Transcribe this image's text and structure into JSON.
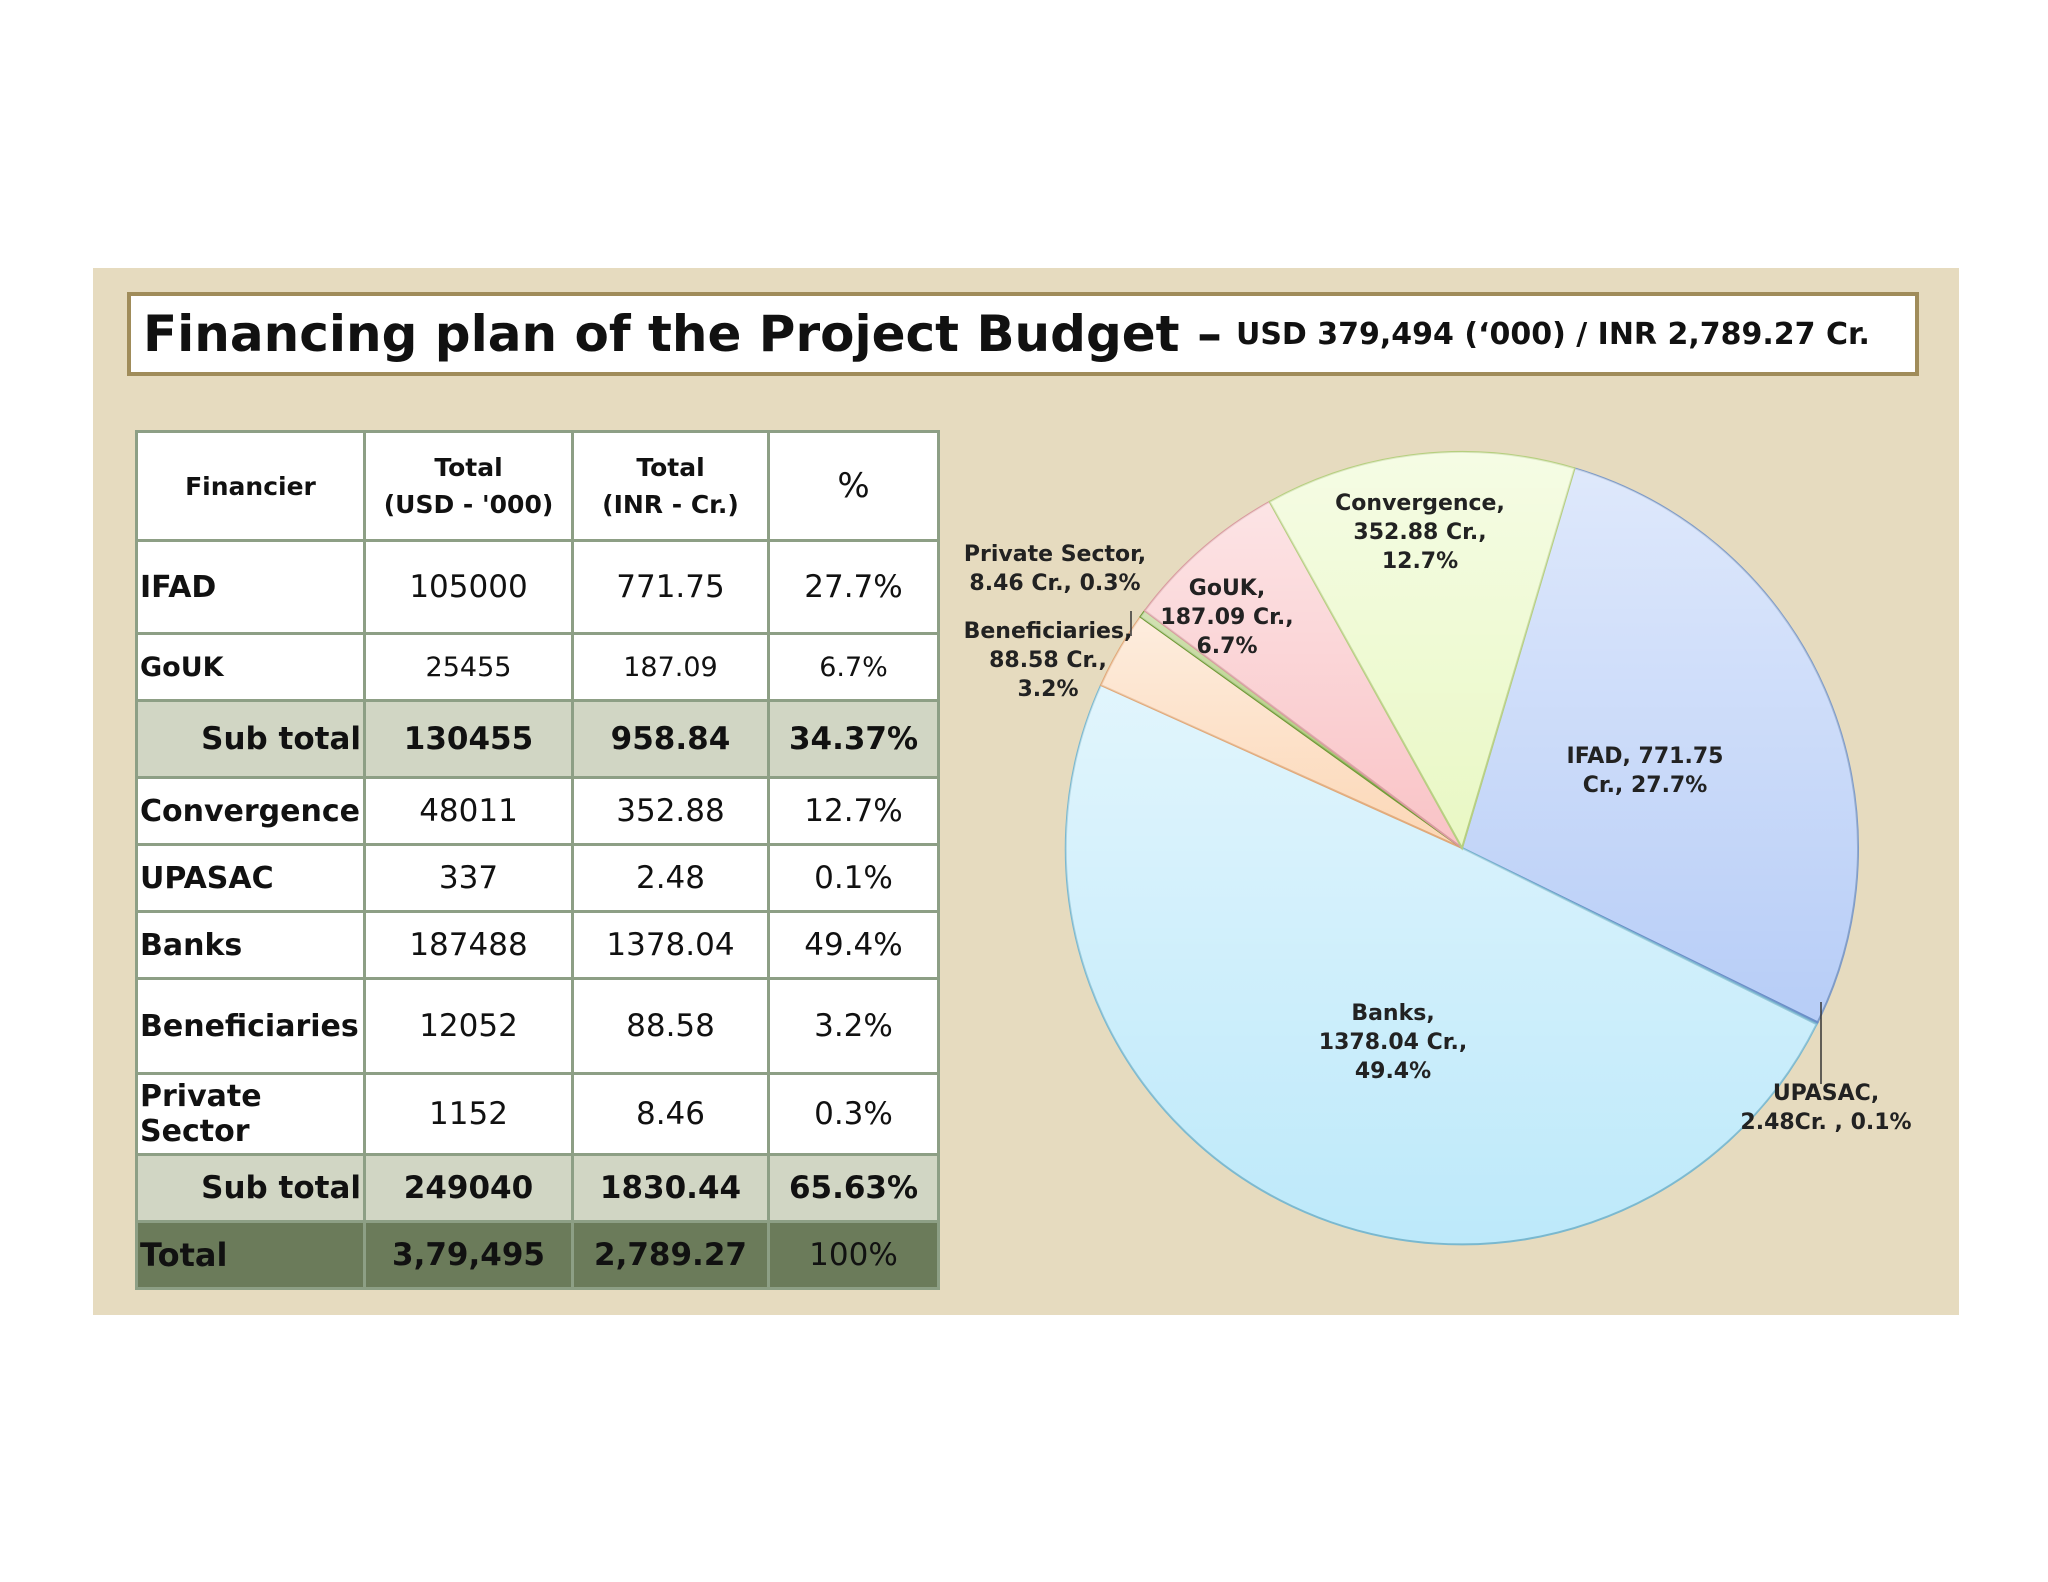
{
  "title": {
    "main": "Financing plan of the Project Budget –",
    "sub": "USD 379,494 (‘000) / INR 2,789.27 Cr."
  },
  "table": {
    "headers": [
      "Financier",
      "Total\n(USD - '000)",
      "Total\n(INR - Cr.)",
      "%"
    ],
    "rows": [
      {
        "name": "IFAD",
        "usd": "105000",
        "inr": "771.75",
        "pct": "27.7%"
      },
      {
        "name": "GoUK",
        "usd": "25455",
        "inr": "187.09",
        "pct": "6.7%"
      },
      {
        "name": "Sub total",
        "usd": "130455",
        "inr": "958.84",
        "pct": "34.37%"
      },
      {
        "name": "Convergence",
        "usd": "48011",
        "inr": "352.88",
        "pct": "12.7%"
      },
      {
        "name": "UPASAC",
        "usd": "337",
        "inr": "2.48",
        "pct": "0.1%"
      },
      {
        "name": "Banks",
        "usd": "187488",
        "inr": "1378.04",
        "pct": "49.4%"
      },
      {
        "name": "Beneficiaries",
        "usd": "12052",
        "inr": "88.58",
        "pct": "3.2%"
      },
      {
        "name": "Private Sector",
        "usd": "1152",
        "inr": "8.46",
        "pct": "0.3%"
      },
      {
        "name": "Sub total",
        "usd": "249040",
        "inr": "1830.44",
        "pct": "65.63%"
      },
      {
        "name": "Total",
        "usd": "3,79,495",
        "inr": "2,789.27",
        "pct": "100%"
      }
    ]
  },
  "chart_data": {
    "type": "pie",
    "slices": [
      {
        "name": "IFAD",
        "value": 771.75,
        "percent": 27.7,
        "label": [
          "IFAD, 771.75",
          "Cr., 27.7%"
        ],
        "color": "#b7cdf7"
      },
      {
        "name": "UPASAC",
        "value": 2.48,
        "percent": 0.1,
        "label": [
          "UPASAC,",
          "2.48Cr. , 0.1%"
        ],
        "color": "#8fb0e8"
      },
      {
        "name": "Banks",
        "value": 1378.04,
        "percent": 49.4,
        "label": [
          "Banks,",
          "1378.04 Cr.,",
          "49.4%"
        ],
        "color": "#bde9fa"
      },
      {
        "name": "Beneficiaries",
        "value": 88.58,
        "percent": 3.2,
        "label": [
          "Beneficiaries,",
          "88.58 Cr.,",
          "3.2%"
        ],
        "color": "#fcd7b6"
      },
      {
        "name": "Private Sector",
        "value": 8.46,
        "percent": 0.3,
        "label": [
          "Private Sector,",
          "8.46 Cr., 0.3%"
        ],
        "color": "#9dc05a"
      },
      {
        "name": "GoUK",
        "value": 187.09,
        "percent": 6.7,
        "label": [
          "GoUK,",
          "187.09 Cr.,",
          "6.7%"
        ],
        "color": "#f9c3c6"
      },
      {
        "name": "Convergence",
        "value": 352.88,
        "percent": 12.7,
        "label": [
          "Convergence,",
          "352.88 Cr.,",
          "12.7%"
        ],
        "color": "#e9f8c4"
      }
    ],
    "total": 2789.27
  }
}
